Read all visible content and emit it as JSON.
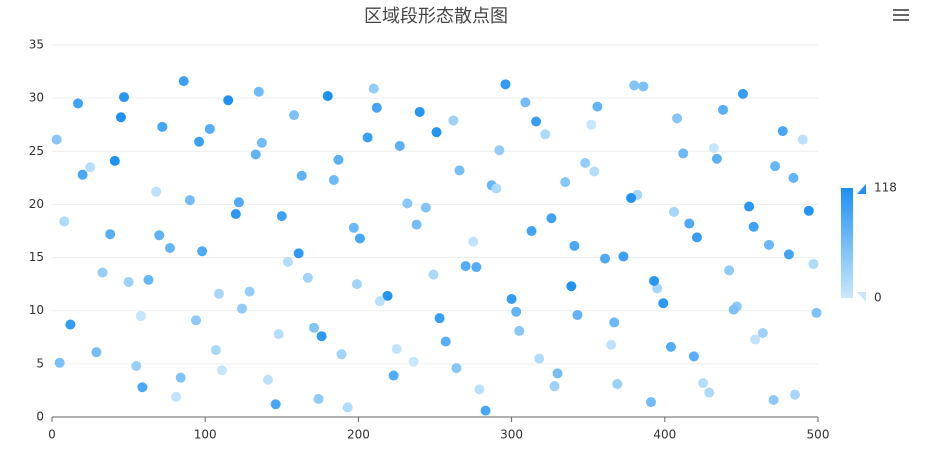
{
  "chart_data": {
    "type": "scatter",
    "title": "区域段形态散点图",
    "xlim": [
      0,
      500
    ],
    "xticks": [
      0,
      100,
      200,
      300,
      400,
      500
    ],
    "ylim": [
      0,
      35
    ],
    "yticks": [
      0,
      5,
      10,
      15,
      20,
      25,
      30,
      35
    ],
    "grid": true,
    "visual_map": {
      "min": 0,
      "max": 118,
      "colors": [
        "#cae8fc",
        "#1c90f4"
      ]
    },
    "x": [
      3,
      12,
      25,
      38,
      47,
      55,
      63,
      72,
      81,
      90,
      98,
      107,
      115,
      124,
      133,
      141,
      150,
      158,
      167,
      176,
      184,
      193,
      201,
      210,
      219,
      227,
      236,
      244,
      253,
      262,
      270,
      279,
      287,
      296,
      305,
      313,
      322,
      330,
      339,
      348,
      356,
      365,
      373,
      382,
      391,
      399,
      408,
      416,
      425,
      434,
      442,
      451,
      459,
      468,
      477,
      485,
      494,
      499,
      8,
      17,
      29,
      41,
      50,
      59,
      68,
      77,
      86,
      94,
      103,
      111,
      120,
      129,
      137,
      146,
      154,
      163,
      171,
      180,
      189,
      197,
      206,
      214,
      223,
      232,
      240,
      249,
      257,
      266,
      275,
      283,
      292,
      300,
      309,
      318,
      326,
      335,
      343,
      352,
      361,
      369,
      378,
      386,
      395,
      404,
      412,
      421,
      429,
      438,
      447,
      455,
      464,
      472,
      481,
      490,
      5,
      20,
      33,
      45,
      58,
      70,
      84,
      96,
      109,
      122,
      135,
      148,
      161,
      174,
      187,
      199,
      212,
      225,
      238,
      251,
      264,
      277,
      290,
      303,
      316,
      328,
      341,
      354,
      367,
      380,
      393,
      406,
      419,
      432,
      445,
      458,
      471,
      484,
      497
    ],
    "values": [
      26.1,
      8.7,
      23.5,
      17.2,
      30.1,
      4.8,
      12.9,
      27.3,
      1.9,
      20.4,
      15.6,
      6.3,
      29.8,
      10.2,
      24.7,
      3.5,
      18.9,
      28.4,
      13.1,
      7.6,
      22.3,
      0.9,
      16.8,
      30.9,
      11.4,
      25.5,
      5.2,
      19.7,
      9.3,
      27.9,
      14.2,
      2.6,
      21.8,
      31.3,
      8.1,
      17.5,
      26.6,
      4.1,
      12.3,
      23.9,
      29.2,
      6.8,
      15.1,
      20.9,
      1.4,
      10.7,
      28.1,
      18.2,
      3.2,
      24.3,
      13.8,
      30.4,
      7.3,
      16.2,
      26.9,
      2.1,
      19.4,
      9.8,
      18.4,
      29.5,
      6.1,
      24.1,
      12.7,
      2.8,
      21.2,
      15.9,
      31.6,
      9.1,
      27.1,
      4.4,
      19.1,
      11.8,
      25.8,
      1.2,
      14.6,
      22.7,
      8.4,
      30.2,
      5.9,
      17.8,
      26.3,
      10.9,
      3.9,
      20.1,
      28.7,
      13.4,
      7.1,
      23.2,
      16.5,
      0.6,
      25.1,
      11.1,
      29.6,
      5.5,
      18.7,
      22.1,
      9.6,
      27.5,
      14.9,
      3.1,
      20.6,
      31.1,
      12.1,
      6.6,
      24.8,
      16.9,
      2.3,
      28.9,
      10.4,
      19.8,
      7.9,
      23.6,
      15.3,
      26.1,
      5.1,
      22.8,
      13.6,
      28.2,
      9.5,
      17.1,
      3.7,
      25.9,
      11.6,
      20.2,
      30.6,
      7.8,
      15.4,
      1.7,
      24.2,
      12.5,
      29.1,
      6.4,
      18.1,
      26.8,
      4.6,
      14.1,
      21.5,
      9.9,
      27.8,
      2.9,
      16.1,
      23.1,
      8.9,
      31.2,
      12.8,
      19.3,
      5.7,
      25.3,
      10.1,
      17.9,
      1.6,
      22.5,
      14.4
    ],
    "color_values": [
      45,
      102,
      13,
      78,
      110,
      33,
      67,
      91,
      5,
      58,
      84,
      22,
      117,
      40,
      71,
      9,
      96,
      53,
      28,
      106,
      62,
      17,
      88,
      38,
      113,
      74,
      2,
      49,
      99,
      31,
      80,
      11,
      66,
      104,
      43,
      92,
      20,
      57,
      115,
      36,
      70,
      8,
      95,
      26,
      61,
      109,
      47,
      83,
      14,
      75,
      39,
      101,
      6,
      64,
      88,
      24,
      112,
      51,
      19,
      93,
      56,
      116,
      30,
      86,
      10,
      68,
      97,
      41,
      79,
      3,
      107,
      35,
      59,
      90,
      15,
      73,
      48,
      118,
      27,
      65,
      98,
      12,
      82,
      44,
      111,
      21,
      77,
      54,
      7,
      89,
      37,
      103,
      60,
      16,
      94,
      46,
      71,
      1,
      85,
      32,
      114,
      52,
      25,
      81,
      63,
      100,
      18,
      76,
      42,
      108,
      29,
      67,
      92,
      11,
      55,
      87,
      34,
      116,
      4,
      72,
      50,
      97,
      23,
      83,
      61,
      13,
      105,
      39,
      74,
      28,
      91,
      6,
      58,
      112,
      45,
      80,
      20,
      69,
      99,
      31,
      87,
      15,
      64,
      48,
      109,
      26,
      77,
      3,
      53,
      94,
      41,
      70,
      18
    ]
  }
}
